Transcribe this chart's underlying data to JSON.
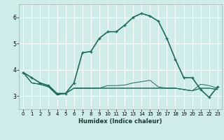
{
  "title": "",
  "xlabel": "Humidex (Indice chaleur)",
  "ylabel": "",
  "background_color": "#ceecea",
  "grid_color": "#ffffff",
  "line_color": "#1a6b5e",
  "xlim": [
    -0.5,
    23.5
  ],
  "ylim": [
    2.5,
    6.5
  ],
  "yticks": [
    3,
    4,
    5,
    6
  ],
  "xticks": [
    0,
    1,
    2,
    3,
    4,
    5,
    6,
    7,
    8,
    9,
    10,
    11,
    12,
    13,
    14,
    15,
    16,
    17,
    18,
    19,
    20,
    21,
    22,
    23
  ],
  "series": [
    {
      "x": [
        0,
        1,
        2,
        3,
        4,
        5,
        6,
        7,
        8,
        9,
        10,
        11,
        12,
        13,
        14,
        15,
        16,
        17,
        18,
        19,
        20,
        21,
        22,
        23
      ],
      "y": [
        3.9,
        3.7,
        3.5,
        3.4,
        3.1,
        3.1,
        3.5,
        4.65,
        4.7,
        5.2,
        5.45,
        5.45,
        5.7,
        6.0,
        6.15,
        6.05,
        5.85,
        5.2,
        4.4,
        3.7,
        3.7,
        3.25,
        2.95,
        3.35
      ],
      "marker": "+",
      "lw": 1.2
    },
    {
      "x": [
        0,
        1,
        2,
        3,
        4,
        5,
        6,
        7,
        8,
        9,
        10,
        11,
        12,
        13,
        14,
        15,
        16,
        17,
        18,
        19,
        20,
        21,
        22,
        23
      ],
      "y": [
        3.9,
        3.5,
        3.45,
        3.35,
        3.05,
        3.1,
        3.3,
        3.3,
        3.3,
        3.3,
        3.4,
        3.4,
        3.42,
        3.5,
        3.55,
        3.6,
        3.35,
        3.3,
        3.3,
        3.25,
        3.2,
        3.45,
        3.4,
        3.3
      ],
      "marker": null,
      "lw": 0.7
    },
    {
      "x": [
        0,
        1,
        2,
        3,
        4,
        5,
        6,
        7,
        8,
        9,
        10,
        11,
        12,
        13,
        14,
        15,
        16,
        17,
        18,
        19,
        20,
        21,
        22,
        23
      ],
      "y": [
        3.9,
        3.5,
        3.45,
        3.35,
        3.05,
        3.1,
        3.3,
        3.3,
        3.3,
        3.3,
        3.3,
        3.3,
        3.3,
        3.3,
        3.3,
        3.3,
        3.3,
        3.3,
        3.3,
        3.25,
        3.2,
        3.3,
        3.3,
        3.25
      ],
      "marker": null,
      "lw": 0.7
    },
    {
      "x": [
        0,
        1,
        2,
        3,
        4,
        5,
        6,
        7,
        8,
        9,
        10,
        11,
        12,
        13,
        14,
        15,
        16,
        17,
        18,
        19,
        20,
        21,
        22,
        23
      ],
      "y": [
        3.9,
        3.5,
        3.45,
        3.35,
        3.05,
        3.1,
        3.3,
        3.3,
        3.3,
        3.3,
        3.3,
        3.3,
        3.3,
        3.3,
        3.3,
        3.3,
        3.3,
        3.3,
        3.3,
        3.25,
        3.2,
        3.3,
        3.3,
        3.25
      ],
      "marker": null,
      "lw": 0.7
    }
  ]
}
